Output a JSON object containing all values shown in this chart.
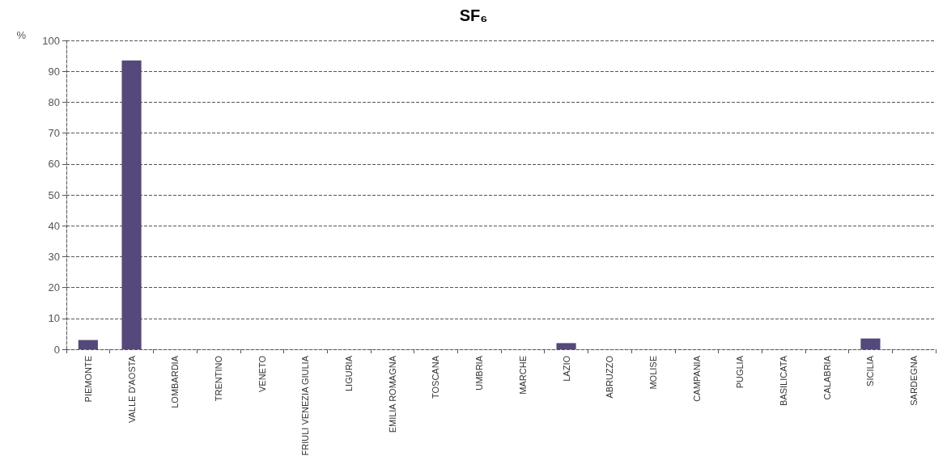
{
  "chart_data": {
    "type": "bar",
    "title": "SF₆",
    "ylabel": "%",
    "categories": [
      "PIEMONTE",
      "VALLE D'AOSTA",
      "LOMBARDIA",
      "TRENTINO",
      "VENETO",
      "FRIULI VENEZIA GIULIA",
      "LIGURIA",
      "EMILIA ROMAGNA",
      "TOSCANA",
      "UMBRIA",
      "MARCHE",
      "LAZIO",
      "ABRUZZO",
      "MOLISE",
      "CAMPANIA",
      "PUGLIA",
      "BASILICATA",
      "CALABRIA",
      "SICILIA",
      "SARDEGNA"
    ],
    "values": [
      3,
      93.5,
      0,
      0,
      0,
      0,
      0,
      0,
      0,
      0,
      0,
      2,
      0,
      0,
      0,
      0,
      0,
      0,
      3.5,
      0
    ],
    "color": "#55487a",
    "ylim": [
      0,
      100
    ],
    "yticks": [
      0,
      10,
      20,
      30,
      40,
      50,
      60,
      70,
      80,
      90,
      100
    ],
    "grid": "y"
  }
}
